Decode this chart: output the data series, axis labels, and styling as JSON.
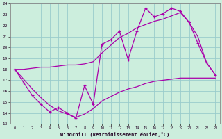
{
  "xlabel": "Windchill (Refroidissement éolien,°C)",
  "bg_color": "#cceedd",
  "grid_color": "#99cccc",
  "line_color": "#aa00aa",
  "x_values": [
    0,
    1,
    2,
    3,
    4,
    5,
    6,
    7,
    8,
    9,
    10,
    11,
    12,
    13,
    14,
    15,
    16,
    17,
    18,
    19,
    20,
    21,
    22,
    23
  ],
  "main_line": [
    18,
    16.8,
    15.6,
    14.8,
    14.1,
    14.5,
    14.0,
    13.5,
    16.5,
    14.8,
    20.3,
    20.7,
    21.5,
    18.9,
    21.5,
    23.6,
    22.8,
    23.1,
    23.6,
    23.3,
    22.3,
    20.4,
    18.6,
    17.5
  ],
  "upper_line": [
    18,
    18.0,
    18.1,
    18.2,
    18.2,
    18.3,
    18.4,
    18.4,
    18.5,
    18.7,
    19.5,
    20.2,
    20.9,
    21.3,
    21.8,
    22.1,
    22.4,
    22.6,
    22.9,
    23.2,
    22.3,
    21.0,
    18.6,
    17.5
  ],
  "lower_line": [
    18,
    17.1,
    16.2,
    15.4,
    14.7,
    14.2,
    13.9,
    13.6,
    13.9,
    14.4,
    15.1,
    15.5,
    15.9,
    16.2,
    16.4,
    16.7,
    16.9,
    17.0,
    17.1,
    17.2,
    17.2,
    17.2,
    17.2,
    17.2
  ],
  "ylim": [
    13,
    24
  ],
  "yticks": [
    13,
    14,
    15,
    16,
    17,
    18,
    19,
    20,
    21,
    22,
    23,
    24
  ],
  "xlim": [
    -0.5,
    23.5
  ],
  "xticks": [
    0,
    1,
    2,
    3,
    4,
    5,
    6,
    7,
    8,
    9,
    10,
    11,
    12,
    13,
    14,
    15,
    16,
    17,
    18,
    19,
    20,
    21,
    22,
    23
  ]
}
